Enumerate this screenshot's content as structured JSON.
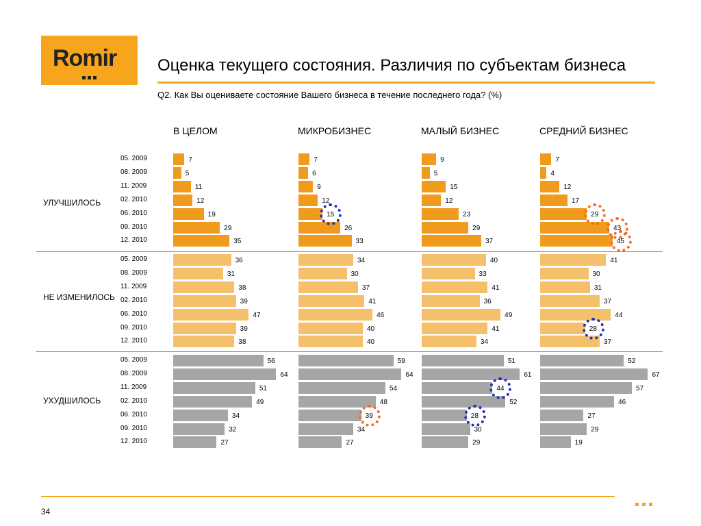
{
  "logo": {
    "text": "Romir"
  },
  "title": "Оценка текущего состояния. Различия по субъектам бизнеса",
  "question": "Q2. Как Вы оцениваете состояние Вашего бизнеса в течение последнего года? (%)",
  "page_number": "34",
  "colors": {
    "improved": "#f09a1e",
    "unchanged": "#f5c06c",
    "worsened": "#a6a6a6",
    "circle_orange": "#f26b21",
    "circle_blue": "#1f2fb8",
    "accent": "#f7a51c"
  },
  "chart_data": {
    "type": "bar",
    "orientation": "horizontal",
    "columns": [
      "В ЦЕЛОМ",
      "МИКРОБИЗНЕС",
      "МАЛЫЙ БИЗНЕС",
      "СРЕДНИЙ БИЗНЕС"
    ],
    "periods": [
      "05. 2009",
      "08. 2009",
      "11. 2009",
      "02. 2010",
      "06. 2010",
      "09. 2010",
      "12. 2010"
    ],
    "groups": [
      {
        "label": "УЛУЧШИЛОСЬ",
        "series": [
          [
            7,
            5,
            11,
            12,
            19,
            29,
            35
          ],
          [
            7,
            6,
            9,
            12,
            15,
            26,
            33
          ],
          [
            9,
            5,
            15,
            12,
            23,
            29,
            37
          ],
          [
            7,
            4,
            12,
            17,
            29,
            43,
            45
          ]
        ]
      },
      {
        "label": "НЕ ИЗМЕНИЛОСЬ",
        "series": [
          [
            36,
            31,
            38,
            39,
            47,
            39,
            38
          ],
          [
            34,
            30,
            37,
            41,
            46,
            40,
            40
          ],
          [
            40,
            33,
            41,
            36,
            49,
            41,
            34
          ],
          [
            41,
            30,
            31,
            37,
            44,
            28,
            37
          ]
        ]
      },
      {
        "label": "УХУДШИЛОСЬ",
        "series": [
          [
            56,
            64,
            51,
            49,
            34,
            32,
            27
          ],
          [
            59,
            64,
            54,
            48,
            39,
            34,
            27
          ],
          [
            51,
            61,
            44,
            52,
            28,
            30,
            29
          ],
          [
            52,
            67,
            57,
            46,
            27,
            29,
            19
          ]
        ]
      }
    ],
    "highlights": [
      {
        "group": 0,
        "column": 1,
        "period": 4,
        "color": "blue"
      },
      {
        "group": 0,
        "column": 3,
        "period": 4,
        "color": "orange"
      },
      {
        "group": 0,
        "column": 3,
        "period": 5,
        "color": "orange"
      },
      {
        "group": 0,
        "column": 3,
        "period": 6,
        "color": "orange"
      },
      {
        "group": 1,
        "column": 3,
        "period": 5,
        "color": "blue"
      },
      {
        "group": 2,
        "column": 1,
        "period": 4,
        "color": "orange"
      },
      {
        "group": 2,
        "column": 2,
        "period": 2,
        "color": "blue"
      },
      {
        "group": 2,
        "column": 2,
        "period": 4,
        "color": "blue"
      }
    ]
  }
}
